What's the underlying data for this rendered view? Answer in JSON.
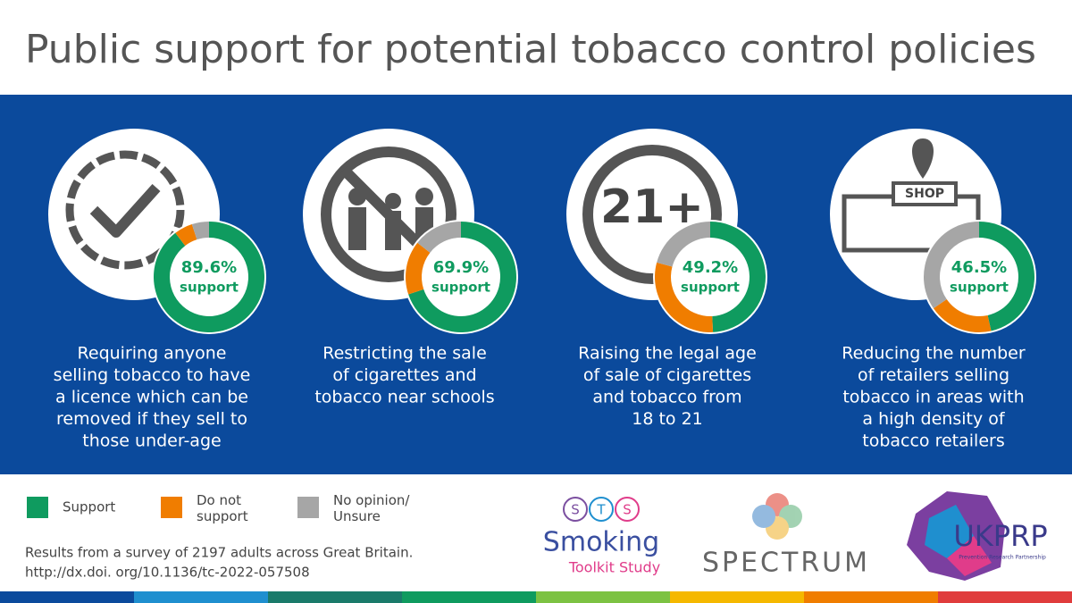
{
  "title": "Public support for potential tobacco control policies",
  "legend": [
    {
      "label": "Support",
      "color": "#0f9b5f"
    },
    {
      "label": "Do not support",
      "color": "#f07d00"
    },
    {
      "label": "No opinion/ Unsure",
      "color": "#a6a6a6"
    }
  ],
  "panels": [
    {
      "icon_text": null,
      "values": [
        89.6,
        5.4,
        5.0
      ],
      "value_label": "89.6%",
      "unit": "support",
      "caption": [
        "Requiring anyone",
        "selling tobacco to have",
        "a licence which can be",
        "removed if they sell to",
        "those under-age"
      ]
    },
    {
      "icon_text": null,
      "values": [
        69.9,
        15.7,
        14.4
      ],
      "value_label": "69.9%",
      "unit": "support",
      "caption": [
        "Restricting the sale",
        "of cigarettes and",
        "tobacco near schools"
      ]
    },
    {
      "icon_text": "21+",
      "values": [
        49.2,
        30.0,
        20.8
      ],
      "value_label": "49.2%",
      "unit": "support",
      "caption": [
        "Raising the legal age",
        "of sale of cigarettes",
        "and tobacco from",
        "18 to 21"
      ]
    },
    {
      "icon_text": "SHOP",
      "values": [
        46.5,
        18.9,
        34.6
      ],
      "value_label": "46.5%",
      "unit": "support",
      "caption": [
        "Reducing the number",
        "of retailers selling",
        "tobacco in areas with",
        "a high density of",
        "tobacco retailers"
      ]
    }
  ],
  "footnote": [
    "Results from a survey of 2197 adults across Great Britain.",
    "http://dx.doi. org/10.1136/tc-2022-057508"
  ],
  "logos": {
    "sts_letters": [
      "S",
      "T",
      "S"
    ],
    "sts_name": "Smoking",
    "sts_sub": "Toolkit Study",
    "spectrum": "SPECTRUM",
    "ukprp": "UKPRP",
    "ukprp_sub": "Prevention Research Partnership"
  }
}
